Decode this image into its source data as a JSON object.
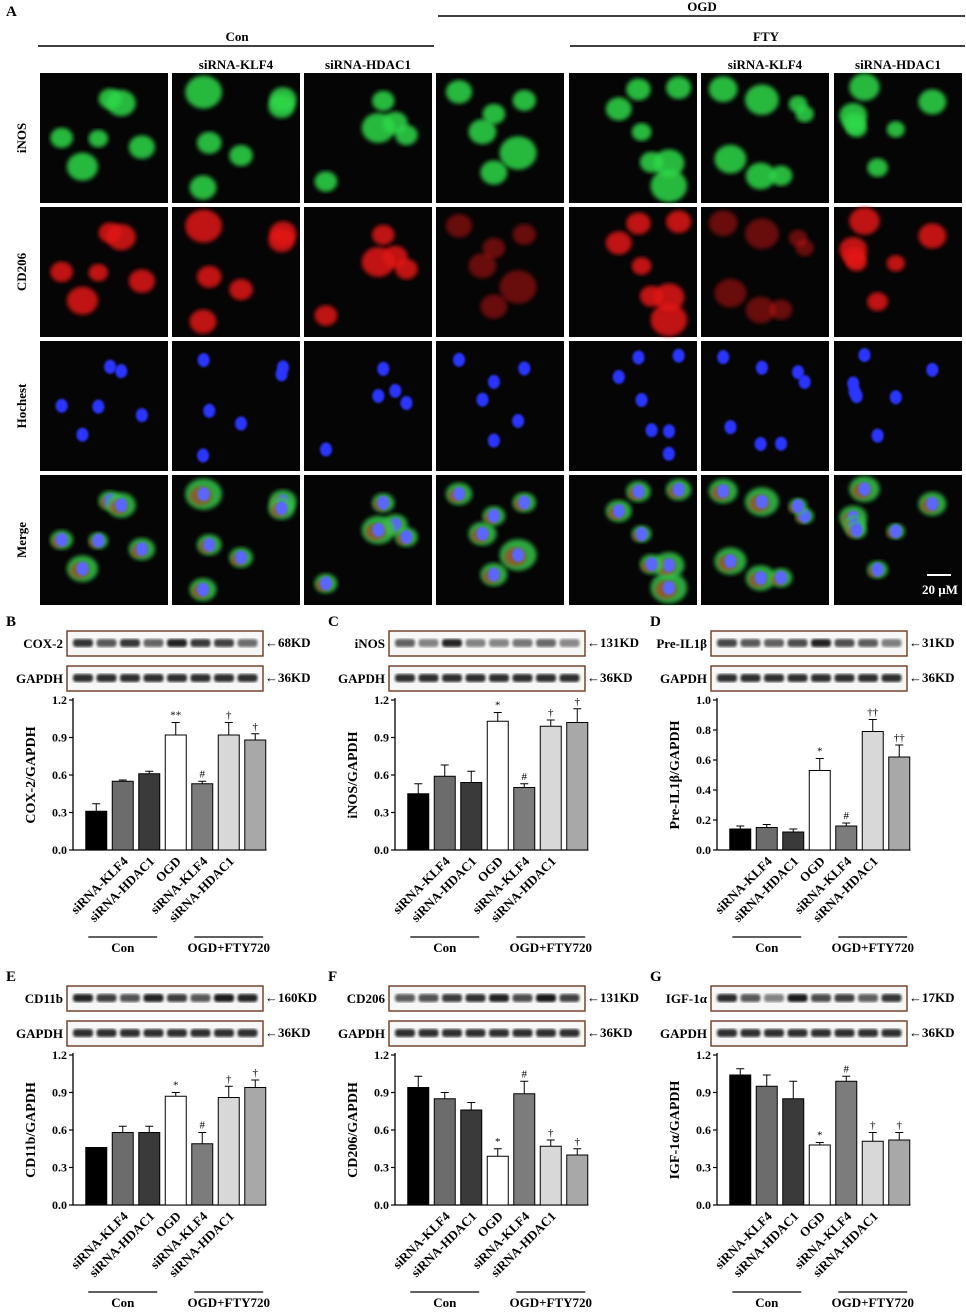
{
  "panel_a": {
    "letter": "A",
    "con_label": "Con",
    "ogd_label": "OGD",
    "fty_label": "FTY",
    "col_labels": [
      "",
      "siRNA-KLF4",
      "siRNA-HDAC1",
      "",
      "",
      "siRNA-KLF4",
      "siRNA-HDAC1"
    ],
    "row_labels": [
      "iNOS",
      "CD206",
      "Hochest",
      "Merge"
    ],
    "scale_bar": "20 μM",
    "colors": {
      "iNOS": "#2fd84a",
      "CD206": "#e11818",
      "Hochest": "#2a36ff"
    }
  },
  "bar_colors": [
    "#000000",
    "#6c6c6c",
    "#3a3a3a",
    "#ffffff",
    "#7c7c7c",
    "#d8d8d8",
    "#a8a8a8"
  ],
  "categories": [
    "",
    "siRNA-KLF4",
    "siRNA-HDAC1",
    "OGD",
    "siRNA-KLF4",
    "siRNA-HDAC1",
    ""
  ],
  "group_labels": {
    "con": "Con",
    "ogd": "OGD+FTY720"
  },
  "blot_ref": {
    "label": "GAPDH",
    "kd": "36KD"
  },
  "chart_data": [
    {
      "type": "bar",
      "letter": "B",
      "protein": "COX-2",
      "kd": "68KD",
      "ylabel": "COX-2/GAPDH",
      "ylim": [
        0,
        1.2
      ],
      "yticks": [
        "0.0",
        "0.3",
        "0.6",
        "0.9",
        "1.2"
      ],
      "values": [
        0.31,
        0.55,
        0.61,
        0.92,
        0.53,
        0.92,
        0.88
      ],
      "errors": [
        0.06,
        0.01,
        0.02,
        0.1,
        0.02,
        0.1,
        0.05
      ],
      "marks": [
        "",
        "",
        "",
        "**",
        "#",
        "†",
        "†"
      ]
    },
    {
      "type": "bar",
      "letter": "C",
      "protein": "iNOS",
      "kd": "131KD",
      "ylabel": "iNOS/GAPDH",
      "ylim": [
        0,
        1.2
      ],
      "yticks": [
        "0.0",
        "0.3",
        "0.6",
        "0.9",
        "1.2"
      ],
      "values": [
        0.45,
        0.59,
        0.54,
        1.03,
        0.5,
        0.99,
        1.02
      ],
      "errors": [
        0.08,
        0.09,
        0.09,
        0.07,
        0.03,
        0.05,
        0.11
      ],
      "marks": [
        "",
        "",
        "",
        "*",
        "#",
        "†",
        "†"
      ]
    },
    {
      "type": "bar",
      "letter": "D",
      "protein": "Pre-IL1β",
      "kd": "31KD",
      "ylabel": "Pre-IL1β/GAPDH",
      "ylim": [
        0,
        1.0
      ],
      "yticks": [
        "0.0",
        "0.2",
        "0.4",
        "0.6",
        "0.8",
        "1.0"
      ],
      "values": [
        0.14,
        0.15,
        0.12,
        0.53,
        0.16,
        0.79,
        0.62
      ],
      "errors": [
        0.02,
        0.02,
        0.02,
        0.08,
        0.02,
        0.08,
        0.08
      ],
      "marks": [
        "",
        "",
        "",
        "*",
        "#",
        "††",
        "††"
      ]
    },
    {
      "type": "bar",
      "letter": "E",
      "protein": "CD11b",
      "kd": "160KD",
      "ylabel": "CD11b/GAPDH",
      "ylim": [
        0,
        1.2
      ],
      "yticks": [
        "0.0",
        "0.3",
        "0.6",
        "0.9",
        "1.2"
      ],
      "values": [
        0.46,
        0.58,
        0.58,
        0.87,
        0.49,
        0.86,
        0.94
      ],
      "errors": [
        0.0,
        0.05,
        0.05,
        0.03,
        0.09,
        0.09,
        0.06
      ],
      "marks": [
        "",
        "",
        "",
        "*",
        "#",
        "†",
        "†"
      ]
    },
    {
      "type": "bar",
      "letter": "F",
      "protein": "CD206",
      "kd": "131KD",
      "ylabel": "CD206/GAPDH",
      "ylim": [
        0,
        1.2
      ],
      "yticks": [
        "0.0",
        "0.3",
        "0.6",
        "0.9",
        "1.2"
      ],
      "values": [
        0.94,
        0.85,
        0.76,
        0.39,
        0.89,
        0.47,
        0.4
      ],
      "errors": [
        0.09,
        0.05,
        0.06,
        0.06,
        0.1,
        0.05,
        0.05
      ],
      "marks": [
        "",
        "",
        "",
        "*",
        "#",
        "†",
        "†"
      ]
    },
    {
      "type": "bar",
      "letter": "G",
      "protein": "IGF-1α",
      "kd": "17KD",
      "ylabel": "IGF-1α/GAPDH",
      "ylim": [
        0,
        1.2
      ],
      "yticks": [
        "0.0",
        "0.3",
        "0.6",
        "0.9",
        "1.2"
      ],
      "values": [
        1.04,
        0.95,
        0.85,
        0.48,
        0.99,
        0.51,
        0.52
      ],
      "errors": [
        0.05,
        0.09,
        0.14,
        0.02,
        0.04,
        0.07,
        0.06
      ],
      "marks": [
        "",
        "",
        "",
        "*",
        "#",
        "†",
        "†"
      ]
    }
  ]
}
